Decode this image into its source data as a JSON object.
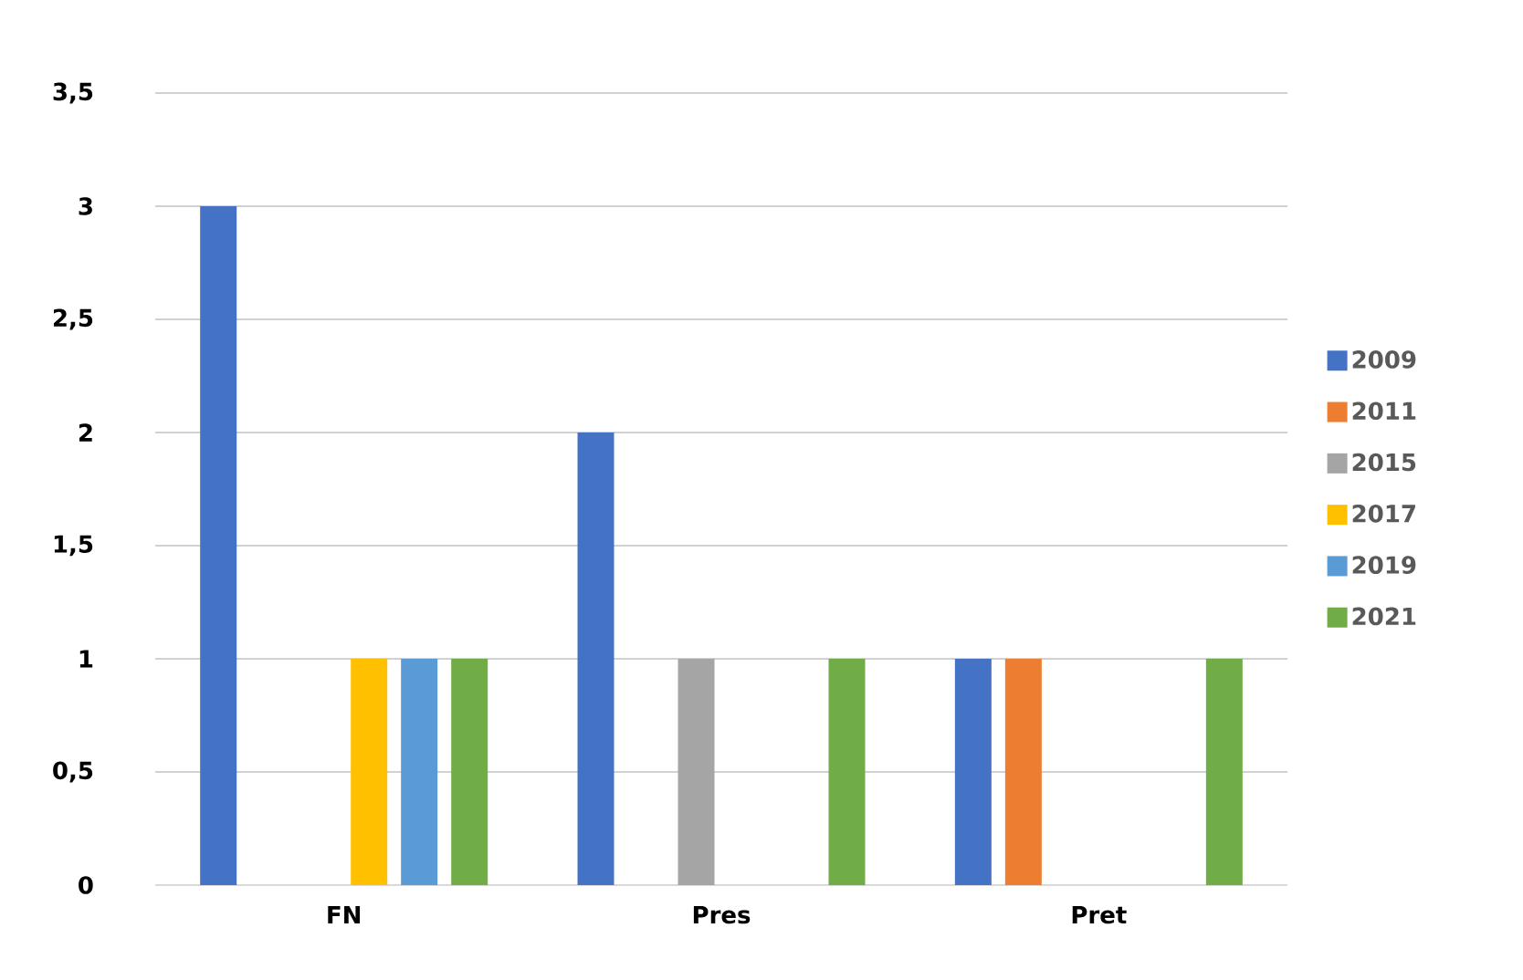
{
  "chart_data": {
    "type": "bar",
    "categories": [
      "FN",
      "Pres",
      "Pret"
    ],
    "series": [
      {
        "name": "2009",
        "color": "#4472c4",
        "values": [
          3,
          2,
          1
        ]
      },
      {
        "name": "2011",
        "color": "#ed7d31",
        "values": [
          0,
          0,
          1
        ]
      },
      {
        "name": "2015",
        "color": "#a5a5a5",
        "values": [
          0,
          1,
          0
        ]
      },
      {
        "name": "2017",
        "color": "#ffc000",
        "values": [
          1,
          0,
          0
        ]
      },
      {
        "name": "2019",
        "color": "#5b9bd5",
        "values": [
          1,
          0,
          0
        ]
      },
      {
        "name": "2021",
        "color": "#70ad47",
        "values": [
          1,
          1,
          1
        ]
      }
    ],
    "ylim": [
      0,
      3.5
    ],
    "yticks": [
      {
        "value": 0,
        "label": "0"
      },
      {
        "value": 0.5,
        "label": "0,5"
      },
      {
        "value": 1,
        "label": "1"
      },
      {
        "value": 1.5,
        "label": "1,5"
      },
      {
        "value": 2,
        "label": "2"
      },
      {
        "value": 2.5,
        "label": "2,5"
      },
      {
        "value": 3,
        "label": "3"
      },
      {
        "value": 3.5,
        "label": "3,5"
      }
    ],
    "grid": "y",
    "legend": "right"
  }
}
